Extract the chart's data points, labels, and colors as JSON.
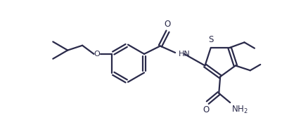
{
  "bg_color": "#ffffff",
  "line_color": "#2a2a4a",
  "line_width": 1.6,
  "figsize": [
    4.02,
    1.88
  ],
  "dpi": 100,
  "xlim": [
    0,
    10.5
  ],
  "ylim": [
    0,
    4.7
  ]
}
